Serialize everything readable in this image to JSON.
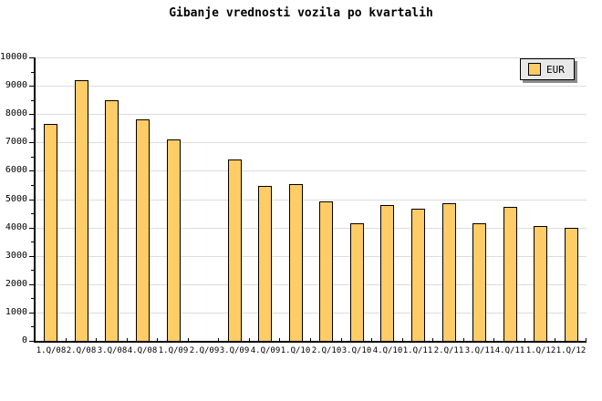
{
  "title": "Gibanje vrednosti vozila po kvartalih",
  "legend": {
    "label": "EUR",
    "swatch_color": "#FFCC66",
    "position": "top-right"
  },
  "colors": {
    "bar_fill": "#FFCC66",
    "bar_border": "#000000",
    "gridline": "#DCDCDC",
    "axis": "#000000",
    "legend_bg": "#E8E8E8",
    "legend_shadow": "#8C8C8C",
    "background": "#FFFFFF",
    "text": "#000000"
  },
  "chart_data": {
    "type": "bar",
    "title": "Gibanje vrednosti vozila po kvartalih",
    "categories": [
      "1.Q/08",
      "2.Q/08",
      "3.Q/08",
      "4.Q/08",
      "1.Q/09",
      "2.Q/09",
      "3.Q/09",
      "4.Q/09",
      "1.Q/10",
      "2.Q/10",
      "3.Q/10",
      "4.Q/10",
      "1.Q/11",
      "2.Q/11",
      "3.Q/11",
      "4.Q/11",
      "1.Q/12",
      "1.Q/12"
    ],
    "series": [
      {
        "name": "EUR",
        "values": [
          7650,
          9200,
          8500,
          7800,
          7100,
          null,
          6400,
          5460,
          5530,
          4910,
          4140,
          4780,
          4650,
          4870,
          4140,
          4720,
          4060,
          3990
        ]
      }
    ],
    "xlabel": "",
    "ylabel": "",
    "ylim": [
      0,
      10000
    ],
    "ytick_step": 1000,
    "ytick_labels": [
      "0",
      "1000",
      "2000",
      "3000",
      "4000",
      "5000",
      "6000",
      "7000",
      "8000",
      "9000",
      "10000"
    ],
    "yminor_step": 500,
    "grid": true,
    "legend_position": "top-right",
    "legend_entries": [
      "EUR"
    ]
  }
}
